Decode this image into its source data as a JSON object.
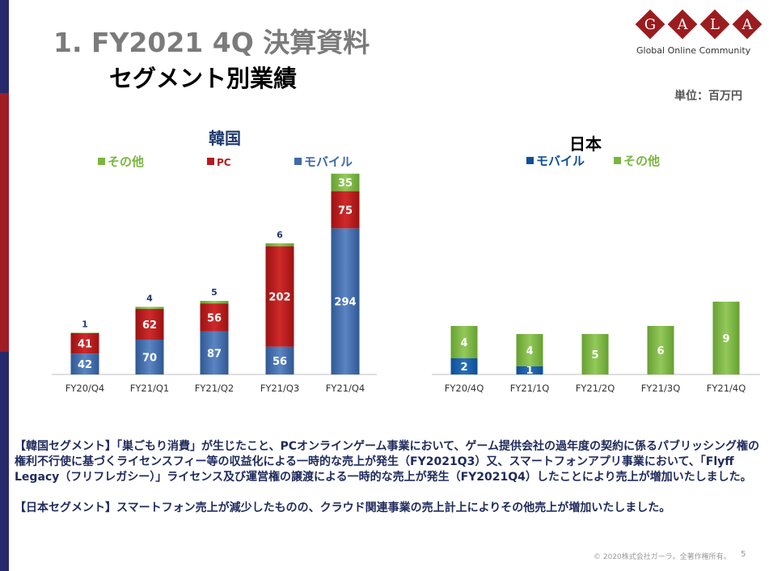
{
  "slide": {
    "title": "1. FY2021 4Q 決算資料",
    "subtitle": "セグメント別業績",
    "unit": "単位：百万円",
    "footer_copyright": "© 2020株式会社ガーラ。全著作権所有。",
    "page_number": "5"
  },
  "logo": {
    "letters": [
      "G",
      "A",
      "L",
      "A"
    ],
    "tagline": "Global Online Community",
    "color": "#9b1c1f"
  },
  "colors": {
    "mobile": "#3e6aa8",
    "pc": "#b81a1a",
    "other": "#7bb640",
    "stripe_navy": "#262a6b",
    "stripe_red": "#a01c27"
  },
  "chart_data": [
    {
      "type": "bar",
      "stacked": true,
      "title": "韓国",
      "categories": [
        "FY20/Q4",
        "FY21/Q1",
        "FY21/Q2",
        "FY21/Q3",
        "FY21/Q4"
      ],
      "series": [
        {
          "name": "モバイル",
          "values": [
            42,
            70,
            87,
            56,
            294
          ]
        },
        {
          "name": "PC",
          "values": [
            41,
            62,
            56,
            202,
            75
          ]
        },
        {
          "name": "その他",
          "values": [
            1,
            4,
            5,
            6,
            35
          ]
        }
      ],
      "legend_order": [
        "その他",
        "PC",
        "モバイル"
      ],
      "legend_position": "top",
      "ylim": [
        0,
        410
      ],
      "grid": false
    },
    {
      "type": "bar",
      "stacked": true,
      "title": "日本",
      "categories": [
        "FY20/4Q",
        "FY21/1Q",
        "FY21/2Q",
        "FY21/3Q",
        "FY21/4Q"
      ],
      "series": [
        {
          "name": "モバイル",
          "values": [
            2,
            1,
            0,
            0,
            0
          ]
        },
        {
          "name": "その他",
          "values": [
            4,
            4,
            5,
            6,
            9
          ]
        }
      ],
      "legend_order": [
        "モバイル",
        "その他"
      ],
      "legend_position": "top",
      "ylim": [
        0,
        9
      ],
      "grid": false
    }
  ],
  "commentary": {
    "korea": "【韓国セグメント】「巣ごもり消費」が生じたこと、PCオンラインゲーム事業において、ゲーム提供会社の過年度の契約に係るパブリッシング権の権利不行使に基づくライセンスフィー等の収益化による一時的な売上が発生（FY2021Q3）又、スマートフォンアプリ事業において、「Flyff Legacy（フリフレガシー）」ライセンス及び運営権の譲渡による一時的な売上が発生（FY2021Q4）したことにより売上が増加いたしました。",
    "japan": "【日本セグメント】スマートフォン売上が減少したものの、クラウド関連事業の売上計上によりその他売上が増加いたしました。"
  }
}
